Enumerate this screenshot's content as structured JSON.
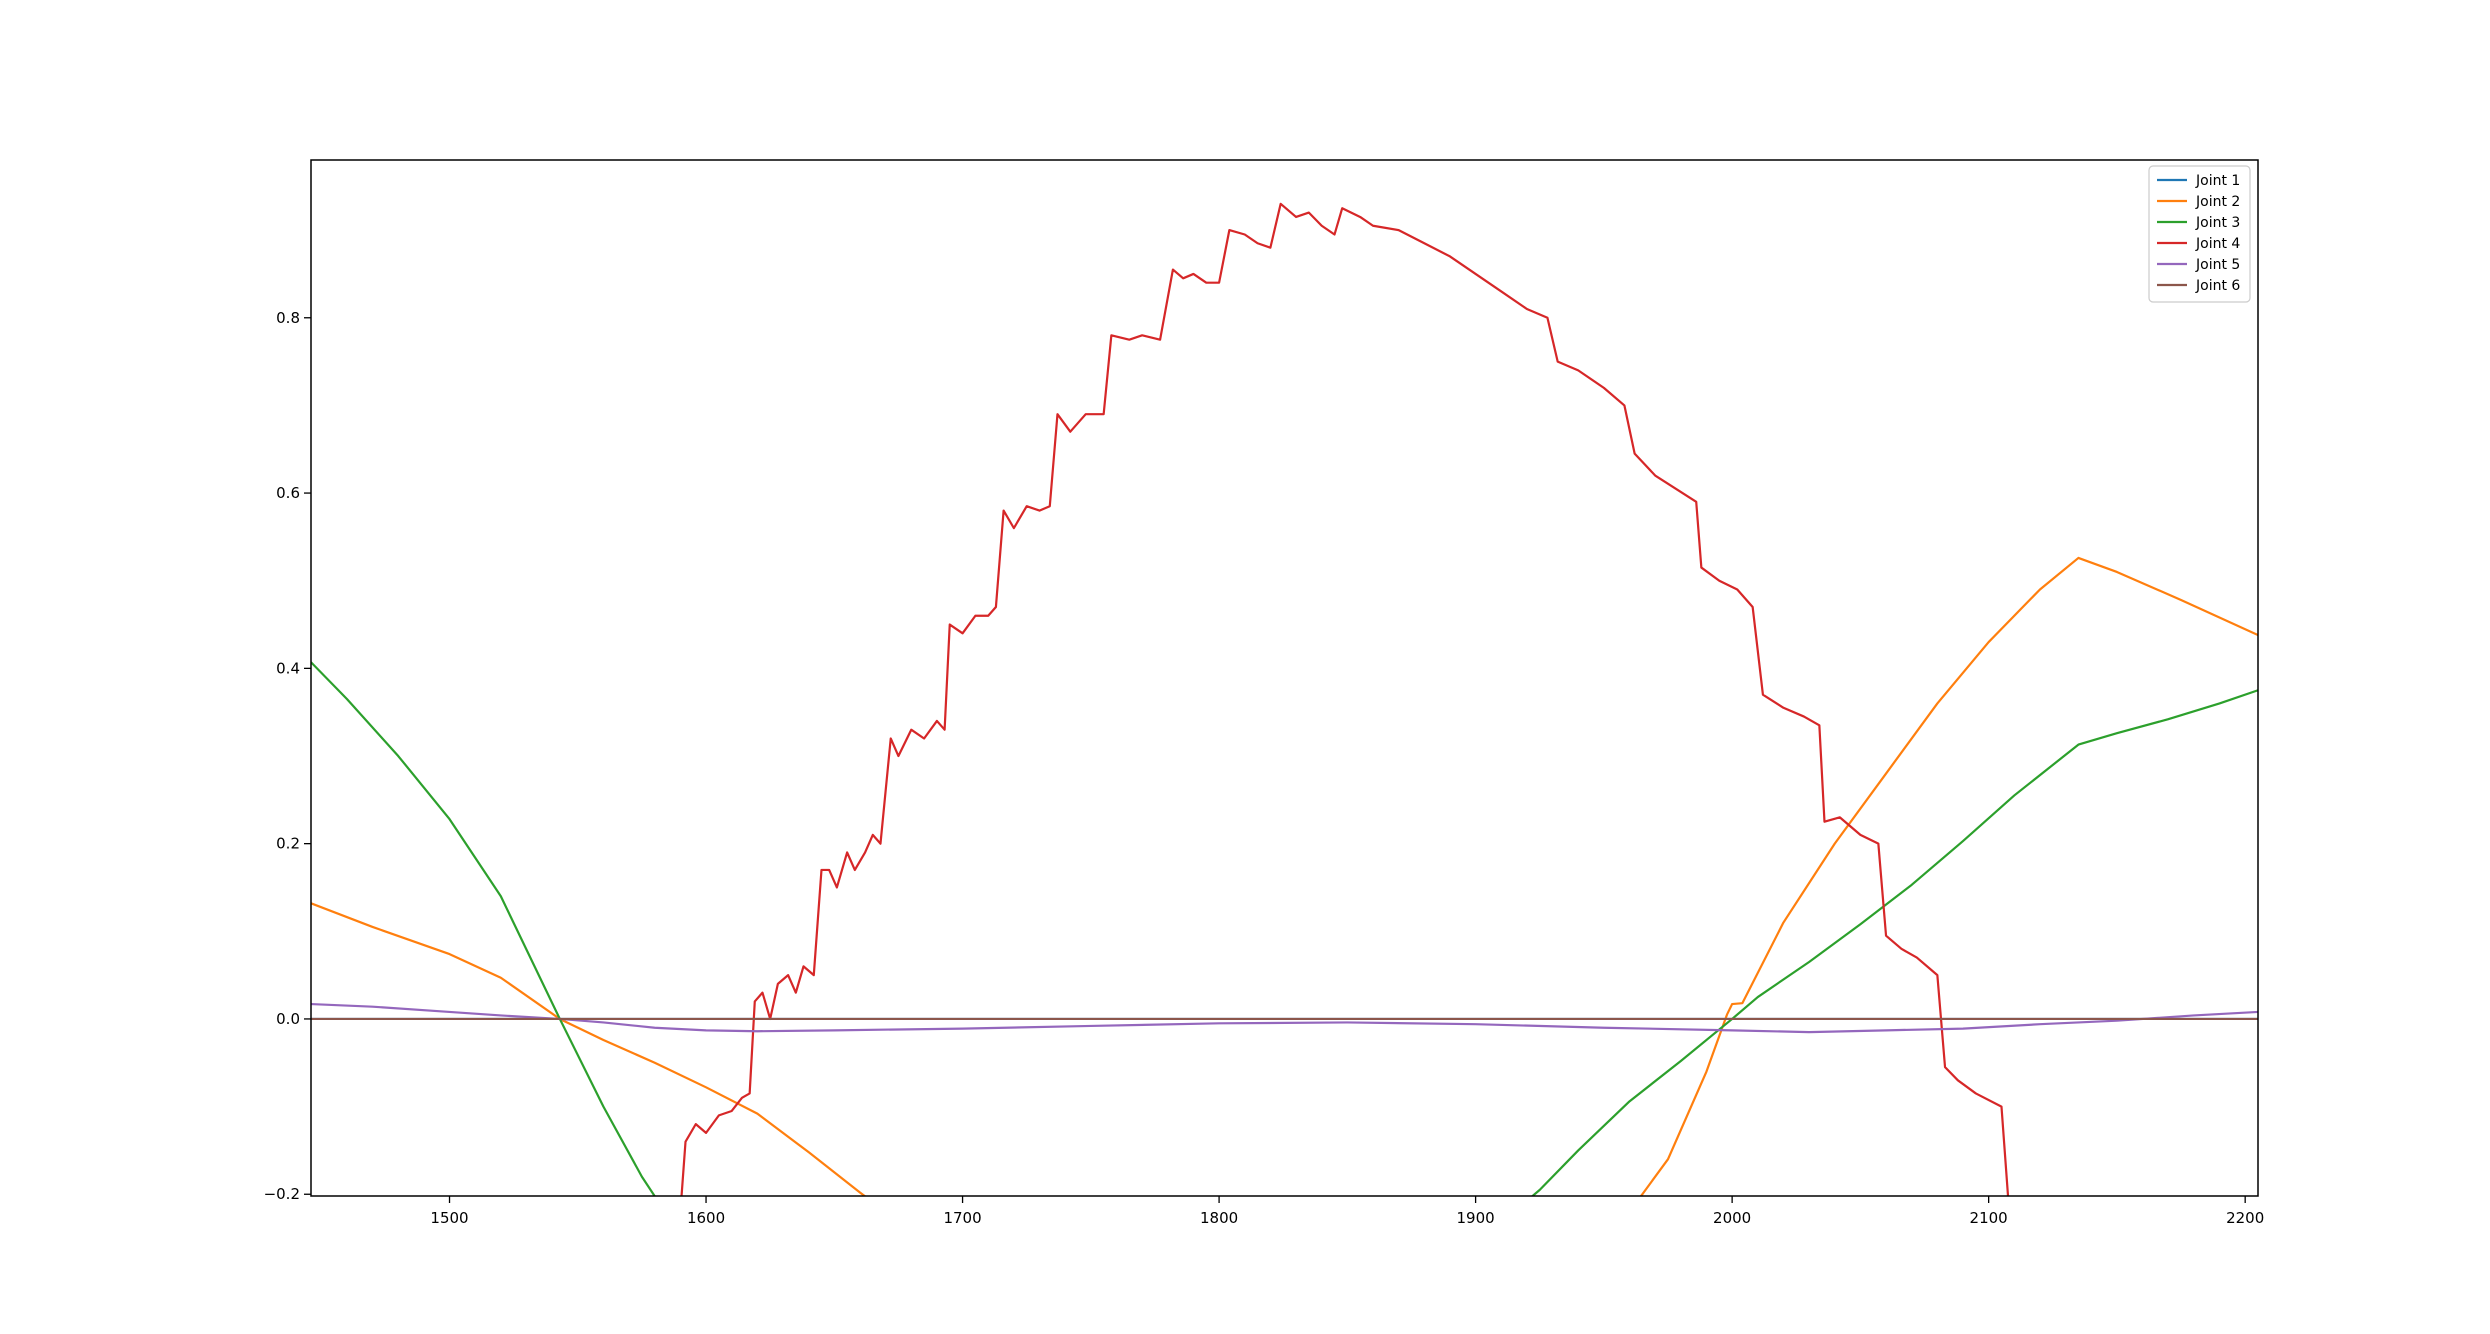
{
  "chart_data": {
    "type": "line",
    "title": "",
    "xlabel": "",
    "ylabel": "",
    "xlim": [
      1446,
      2205
    ],
    "ylim": [
      -0.202,
      0.98
    ],
    "xticks": [
      1500,
      1600,
      1700,
      1800,
      1900,
      2000,
      2100,
      2200
    ],
    "yticks": [
      -0.2,
      0.0,
      0.2,
      0.4,
      0.6,
      0.8
    ],
    "xtick_labels": [
      "1500",
      "1600",
      "1700",
      "1800",
      "1900",
      "2000",
      "2100",
      "2200"
    ],
    "ytick_labels": [
      "−0.2",
      "0.0",
      "0.2",
      "0.4",
      "0.6",
      "0.8"
    ],
    "grid": false,
    "legend_position": "top-right",
    "series": [
      {
        "name": "Joint 1",
        "color": "#1f77b4",
        "points": [
          [
            1446,
            0.0
          ],
          [
            2205,
            0.0
          ]
        ]
      },
      {
        "name": "Joint 2",
        "color": "#ff7f0e",
        "points": [
          [
            1446,
            0.132
          ],
          [
            1470,
            0.105
          ],
          [
            1500,
            0.074
          ],
          [
            1520,
            0.047
          ],
          [
            1543,
            0.0
          ],
          [
            1560,
            -0.024
          ],
          [
            1580,
            -0.05
          ],
          [
            1600,
            -0.078
          ],
          [
            1620,
            -0.108
          ],
          [
            1640,
            -0.152
          ],
          [
            1660,
            -0.198
          ],
          [
            1670,
            -0.22
          ],
          [
            1960,
            -0.22
          ],
          [
            1975,
            -0.16
          ],
          [
            1990,
            -0.06
          ],
          [
            1998,
            0.005
          ],
          [
            2000,
            0.017
          ],
          [
            2004,
            0.018
          ],
          [
            2020,
            0.11
          ],
          [
            2040,
            0.2
          ],
          [
            2060,
            0.28
          ],
          [
            2080,
            0.36
          ],
          [
            2100,
            0.43
          ],
          [
            2120,
            0.49
          ],
          [
            2135,
            0.526
          ],
          [
            2150,
            0.51
          ],
          [
            2175,
            0.478
          ],
          [
            2205,
            0.438
          ]
        ]
      },
      {
        "name": "Joint 3",
        "color": "#2ca02c",
        "points": [
          [
            1446,
            0.407
          ],
          [
            1460,
            0.365
          ],
          [
            1480,
            0.3
          ],
          [
            1500,
            0.228
          ],
          [
            1520,
            0.14
          ],
          [
            1543,
            0.0
          ],
          [
            1560,
            -0.1
          ],
          [
            1575,
            -0.18
          ],
          [
            1584,
            -0.22
          ],
          [
            1915,
            -0.22
          ],
          [
            1925,
            -0.195
          ],
          [
            1940,
            -0.15
          ],
          [
            1960,
            -0.094
          ],
          [
            1980,
            -0.048
          ],
          [
            2000,
            0.0
          ],
          [
            2010,
            0.025
          ],
          [
            2030,
            0.065
          ],
          [
            2050,
            0.108
          ],
          [
            2070,
            0.153
          ],
          [
            2090,
            0.203
          ],
          [
            2110,
            0.255
          ],
          [
            2135,
            0.313
          ],
          [
            2150,
            0.326
          ],
          [
            2170,
            0.342
          ],
          [
            2190,
            0.36
          ],
          [
            2205,
            0.375
          ]
        ]
      },
      {
        "name": "Joint 4",
        "color": "#d62728",
        "points": [
          [
            1590,
            -0.22
          ],
          [
            1592,
            -0.14
          ],
          [
            1596,
            -0.12
          ],
          [
            1600,
            -0.13
          ],
          [
            1605,
            -0.11
          ],
          [
            1610,
            -0.105
          ],
          [
            1614,
            -0.09
          ],
          [
            1617,
            -0.085
          ],
          [
            1619,
            0.02
          ],
          [
            1622,
            0.03
          ],
          [
            1625,
            0.0
          ],
          [
            1628,
            0.04
          ],
          [
            1632,
            0.05
          ],
          [
            1635,
            0.03
          ],
          [
            1638,
            0.06
          ],
          [
            1642,
            0.05
          ],
          [
            1645,
            0.17
          ],
          [
            1648,
            0.17
          ],
          [
            1651,
            0.15
          ],
          [
            1655,
            0.19
          ],
          [
            1658,
            0.17
          ],
          [
            1662,
            0.19
          ],
          [
            1665,
            0.21
          ],
          [
            1668,
            0.2
          ],
          [
            1672,
            0.32
          ],
          [
            1675,
            0.3
          ],
          [
            1680,
            0.33
          ],
          [
            1685,
            0.32
          ],
          [
            1690,
            0.34
          ],
          [
            1693,
            0.33
          ],
          [
            1695,
            0.45
          ],
          [
            1700,
            0.44
          ],
          [
            1705,
            0.46
          ],
          [
            1710,
            0.46
          ],
          [
            1713,
            0.47
          ],
          [
            1716,
            0.58
          ],
          [
            1720,
            0.56
          ],
          [
            1725,
            0.585
          ],
          [
            1730,
            0.58
          ],
          [
            1734,
            0.585
          ],
          [
            1737,
            0.69
          ],
          [
            1742,
            0.67
          ],
          [
            1748,
            0.69
          ],
          [
            1755,
            0.69
          ],
          [
            1758,
            0.78
          ],
          [
            1765,
            0.775
          ],
          [
            1770,
            0.78
          ],
          [
            1777,
            0.775
          ],
          [
            1782,
            0.855
          ],
          [
            1786,
            0.845
          ],
          [
            1790,
            0.85
          ],
          [
            1795,
            0.84
          ],
          [
            1800,
            0.84
          ],
          [
            1804,
            0.9
          ],
          [
            1810,
            0.895
          ],
          [
            1815,
            0.885
          ],
          [
            1820,
            0.88
          ],
          [
            1824,
            0.93
          ],
          [
            1830,
            0.915
          ],
          [
            1835,
            0.92
          ],
          [
            1840,
            0.905
          ],
          [
            1845,
            0.895
          ],
          [
            1848,
            0.925
          ],
          [
            1855,
            0.915
          ],
          [
            1860,
            0.905
          ],
          [
            1870,
            0.9
          ],
          [
            1880,
            0.885
          ],
          [
            1890,
            0.87
          ],
          [
            1900,
            0.85
          ],
          [
            1910,
            0.83
          ],
          [
            1920,
            0.81
          ],
          [
            1928,
            0.8
          ],
          [
            1932,
            0.75
          ],
          [
            1940,
            0.74
          ],
          [
            1950,
            0.72
          ],
          [
            1958,
            0.7
          ],
          [
            1962,
            0.645
          ],
          [
            1970,
            0.62
          ],
          [
            1978,
            0.605
          ],
          [
            1986,
            0.59
          ],
          [
            1988,
            0.515
          ],
          [
            1995,
            0.5
          ],
          [
            2002,
            0.49
          ],
          [
            2008,
            0.47
          ],
          [
            2012,
            0.37
          ],
          [
            2020,
            0.355
          ],
          [
            2028,
            0.345
          ],
          [
            2034,
            0.335
          ],
          [
            2036,
            0.225
          ],
          [
            2042,
            0.23
          ],
          [
            2050,
            0.21
          ],
          [
            2057,
            0.2
          ],
          [
            2060,
            0.095
          ],
          [
            2066,
            0.08
          ],
          [
            2072,
            0.07
          ],
          [
            2080,
            0.05
          ],
          [
            2083,
            -0.055
          ],
          [
            2088,
            -0.07
          ],
          [
            2095,
            -0.085
          ],
          [
            2105,
            -0.1
          ],
          [
            2108,
            -0.22
          ]
        ]
      },
      {
        "name": "Joint 5",
        "color": "#9467bd",
        "points": [
          [
            1446,
            0.017
          ],
          [
            1470,
            0.014
          ],
          [
            1500,
            0.008
          ],
          [
            1520,
            0.004
          ],
          [
            1543,
            0.0
          ],
          [
            1560,
            -0.004
          ],
          [
            1580,
            -0.01
          ],
          [
            1600,
            -0.013
          ],
          [
            1620,
            -0.014
          ],
          [
            1650,
            -0.013
          ],
          [
            1700,
            -0.011
          ],
          [
            1750,
            -0.008
          ],
          [
            1800,
            -0.005
          ],
          [
            1850,
            -0.004
          ],
          [
            1900,
            -0.006
          ],
          [
            1950,
            -0.01
          ],
          [
            2000,
            -0.013
          ],
          [
            2030,
            -0.015
          ],
          [
            2060,
            -0.013
          ],
          [
            2090,
            -0.011
          ],
          [
            2120,
            -0.006
          ],
          [
            2150,
            -0.002
          ],
          [
            2180,
            0.004
          ],
          [
            2205,
            0.008
          ]
        ]
      },
      {
        "name": "Joint 6",
        "color": "#8c564b",
        "points": [
          [
            1446,
            0.0
          ],
          [
            2205,
            0.0
          ]
        ]
      }
    ]
  }
}
